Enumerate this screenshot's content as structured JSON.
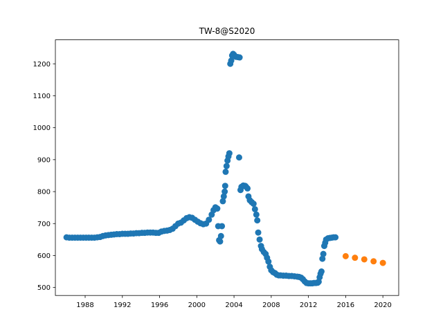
{
  "chart_data": {
    "type": "scatter",
    "title": "TW-8@S2020",
    "xlabel": "",
    "ylabel": "",
    "xlim": [
      1984.8,
      2021.7
    ],
    "ylim": [
      475,
      1275
    ],
    "x_ticks": [
      1988,
      1992,
      1996,
      2000,
      2004,
      2008,
      2012,
      2016,
      2020
    ],
    "y_ticks": [
      500,
      600,
      700,
      800,
      900,
      1000,
      1100,
      1200
    ],
    "grid": false,
    "series": [
      {
        "color": "#1f77b4",
        "points": [
          [
            1986.0,
            657
          ],
          [
            1986.3,
            656
          ],
          [
            1986.6,
            656
          ],
          [
            1986.9,
            656
          ],
          [
            1987.2,
            656
          ],
          [
            1987.5,
            656
          ],
          [
            1987.8,
            656
          ],
          [
            1988.1,
            656
          ],
          [
            1988.4,
            656
          ],
          [
            1988.7,
            656
          ],
          [
            1989.0,
            656
          ],
          [
            1989.3,
            657
          ],
          [
            1989.6,
            658
          ],
          [
            1989.9,
            661
          ],
          [
            1990.2,
            663
          ],
          [
            1990.5,
            664
          ],
          [
            1990.8,
            665
          ],
          [
            1991.1,
            666
          ],
          [
            1991.4,
            667
          ],
          [
            1991.7,
            667
          ],
          [
            1992.0,
            668
          ],
          [
            1992.3,
            668
          ],
          [
            1992.6,
            668
          ],
          [
            1992.9,
            669
          ],
          [
            1993.2,
            669
          ],
          [
            1993.5,
            670
          ],
          [
            1993.8,
            670
          ],
          [
            1994.1,
            671
          ],
          [
            1994.4,
            671
          ],
          [
            1994.7,
            672
          ],
          [
            1995.0,
            672
          ],
          [
            1995.3,
            672
          ],
          [
            1995.6,
            671
          ],
          [
            1995.9,
            671
          ],
          [
            1996.2,
            675
          ],
          [
            1996.5,
            677
          ],
          [
            1996.8,
            678
          ],
          [
            1997.1,
            680
          ],
          [
            1997.4,
            684
          ],
          [
            1997.7,
            692
          ],
          [
            1998.0,
            700
          ],
          [
            1998.3,
            703
          ],
          [
            1998.6,
            710
          ],
          [
            1998.9,
            717
          ],
          [
            1999.2,
            720
          ],
          [
            1999.5,
            718
          ],
          [
            1999.8,
            712
          ],
          [
            2000.1,
            706
          ],
          [
            2000.4,
            701
          ],
          [
            2000.7,
            698
          ],
          [
            2001.0,
            700
          ],
          [
            2001.3,
            712
          ],
          [
            2001.6,
            728
          ],
          [
            2001.8,
            742
          ],
          [
            2002.0,
            751
          ],
          [
            2002.2,
            747
          ],
          [
            2002.3,
            692
          ],
          [
            2002.4,
            648
          ],
          [
            2002.5,
            644
          ],
          [
            2002.6,
            661
          ],
          [
            2002.7,
            692
          ],
          [
            2002.8,
            770
          ],
          [
            2002.9,
            785
          ],
          [
            2003.0,
            800
          ],
          [
            2003.05,
            818
          ],
          [
            2003.1,
            862
          ],
          [
            2003.2,
            880
          ],
          [
            2003.3,
            897
          ],
          [
            2003.4,
            910
          ],
          [
            2003.5,
            920
          ],
          [
            2003.6,
            1200
          ],
          [
            2003.7,
            1210
          ],
          [
            2003.8,
            1226
          ],
          [
            2003.9,
            1231
          ],
          [
            2004.0,
            1228
          ],
          [
            2004.2,
            1222
          ],
          [
            2004.4,
            1221
          ],
          [
            2004.6,
            1220
          ],
          [
            2004.55,
            907
          ],
          [
            2004.7,
            805
          ],
          [
            2004.8,
            815
          ],
          [
            2005.0,
            819
          ],
          [
            2005.2,
            818
          ],
          [
            2005.3,
            815
          ],
          [
            2005.45,
            810
          ],
          [
            2005.55,
            785
          ],
          [
            2005.7,
            773
          ],
          [
            2005.9,
            767
          ],
          [
            2006.1,
            762
          ],
          [
            2006.25,
            745
          ],
          [
            2006.4,
            728
          ],
          [
            2006.5,
            710
          ],
          [
            2006.6,
            672
          ],
          [
            2006.75,
            650
          ],
          [
            2006.9,
            630
          ],
          [
            2007.0,
            620
          ],
          [
            2007.2,
            611
          ],
          [
            2007.4,
            605
          ],
          [
            2007.55,
            593
          ],
          [
            2007.7,
            581
          ],
          [
            2007.85,
            565
          ],
          [
            2008.0,
            554
          ],
          [
            2008.2,
            548
          ],
          [
            2008.4,
            545
          ],
          [
            2008.6,
            540
          ],
          [
            2008.8,
            538
          ],
          [
            2009.0,
            538
          ],
          [
            2009.3,
            537
          ],
          [
            2009.6,
            537
          ],
          [
            2009.9,
            536
          ],
          [
            2010.2,
            536
          ],
          [
            2010.5,
            535
          ],
          [
            2010.8,
            534
          ],
          [
            2011.0,
            533
          ],
          [
            2011.2,
            531
          ],
          [
            2011.4,
            526
          ],
          [
            2011.6,
            519
          ],
          [
            2011.8,
            514
          ],
          [
            2012.0,
            513
          ],
          [
            2012.2,
            513
          ],
          [
            2012.4,
            513
          ],
          [
            2012.6,
            514
          ],
          [
            2012.8,
            514
          ],
          [
            2013.0,
            515
          ],
          [
            2013.1,
            518
          ],
          [
            2013.2,
            532
          ],
          [
            2013.3,
            543
          ],
          [
            2013.4,
            550
          ],
          [
            2013.5,
            590
          ],
          [
            2013.6,
            605
          ],
          [
            2013.7,
            630
          ],
          [
            2013.8,
            640
          ],
          [
            2013.9,
            650
          ],
          [
            2014.1,
            654
          ],
          [
            2014.3,
            655
          ],
          [
            2014.5,
            656
          ],
          [
            2014.7,
            657
          ],
          [
            2014.9,
            657
          ]
        ]
      },
      {
        "color": "#ff7f0e",
        "points": [
          [
            2016.0,
            598
          ],
          [
            2017.0,
            593
          ],
          [
            2018.0,
            588
          ],
          [
            2019.0,
            582
          ],
          [
            2020.0,
            577
          ]
        ]
      }
    ]
  }
}
